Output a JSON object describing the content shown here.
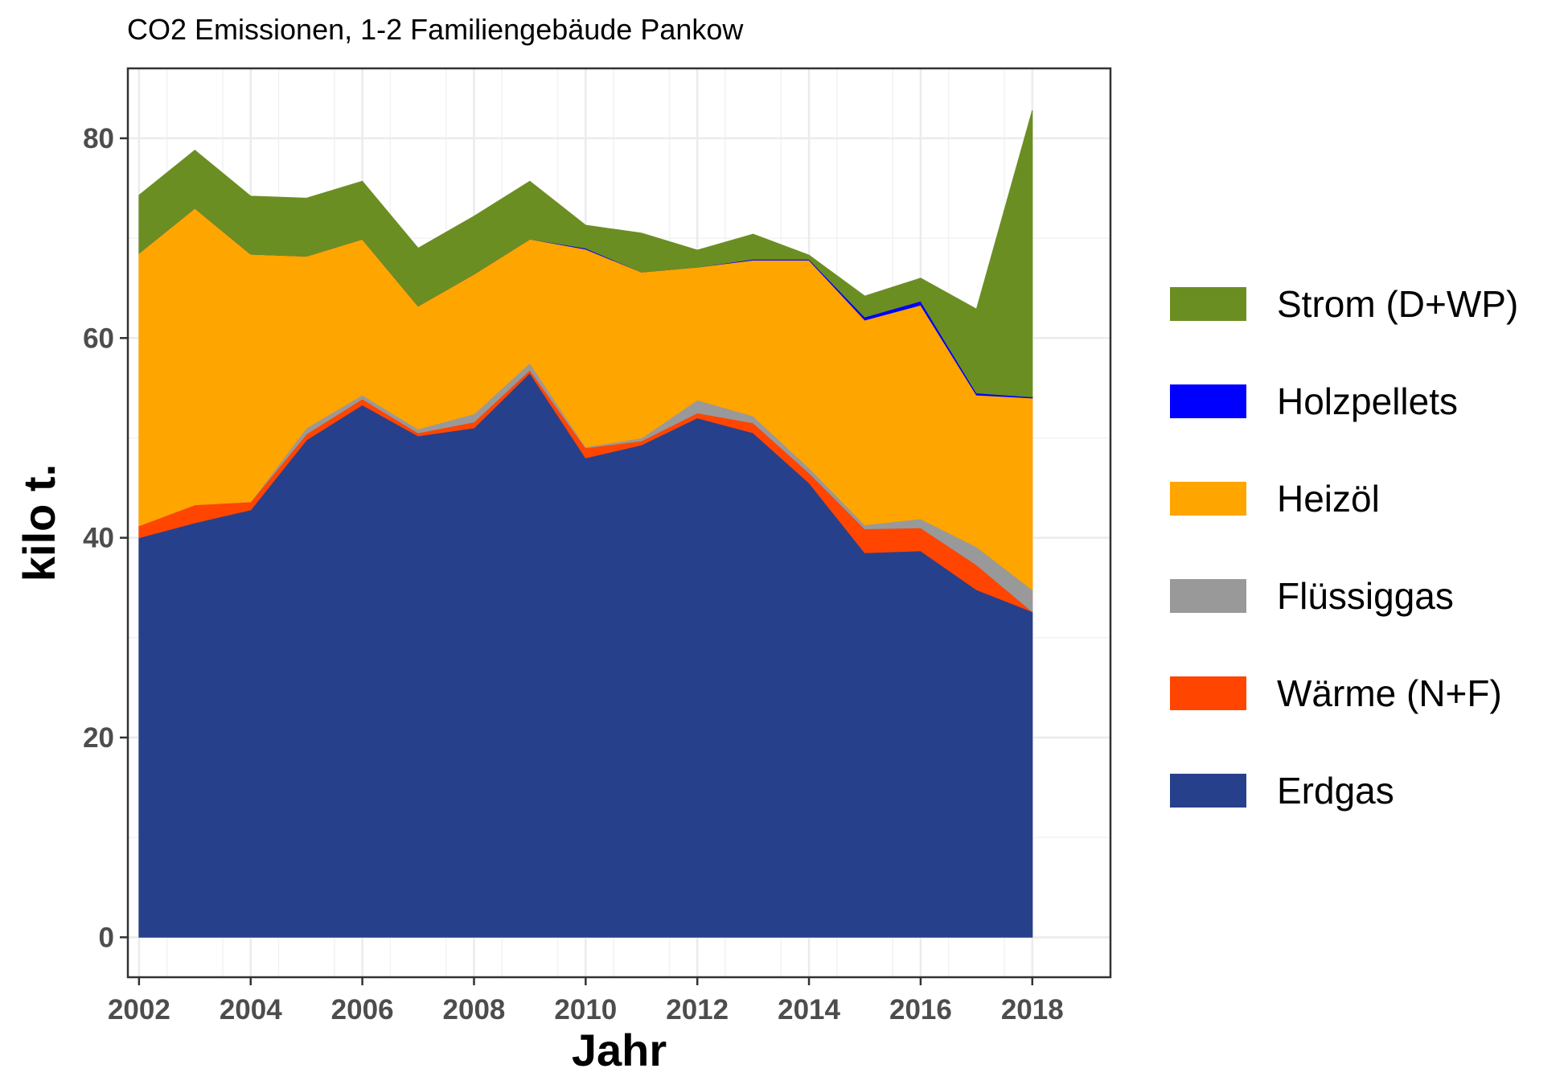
{
  "chart_data": {
    "type": "area",
    "stacked": true,
    "title": "CO2 Emissionen, 1-2 Familiengebäude Pankow",
    "xlabel": "Jahr",
    "ylabel": "kilo t.",
    "x": [
      2002,
      2003,
      2004,
      2005,
      2006,
      2007,
      2008,
      2009,
      2010,
      2011,
      2012,
      2013,
      2014,
      2015,
      2016,
      2017,
      2018
    ],
    "xlim": [
      2001.8,
      2019.4
    ],
    "ylim": [
      -4,
      87
    ],
    "x_ticks": [
      2002,
      2004,
      2006,
      2008,
      2010,
      2012,
      2014,
      2016,
      2018
    ],
    "y_ticks": [
      0,
      20,
      40,
      60,
      80
    ],
    "grid": true,
    "legend_position": "right",
    "series": [
      {
        "name": "Erdgas",
        "color": "#27408b",
        "values": [
          40.0,
          41.5,
          42.8,
          49.8,
          53.3,
          50.2,
          51.0,
          56.5,
          48.0,
          49.3,
          52.0,
          50.5,
          45.5,
          38.5,
          38.7,
          34.8,
          32.6
        ]
      },
      {
        "name": "Wärme (N+F)",
        "color": "#ff4500",
        "values": [
          1.2,
          1.8,
          0.8,
          0.6,
          0.6,
          0.3,
          0.6,
          0.3,
          1.0,
          0.4,
          0.5,
          1.0,
          1.0,
          2.4,
          2.3,
          2.5,
          0.0
        ]
      },
      {
        "name": "Flüssiggas",
        "color": "#999999",
        "values": [
          0.0,
          0.0,
          0.0,
          0.6,
          0.4,
          0.4,
          0.8,
          0.7,
          0.1,
          0.3,
          1.3,
          0.7,
          0.5,
          0.4,
          0.9,
          1.8,
          2.2
        ]
      },
      {
        "name": "Heizöl",
        "color": "#ffa500",
        "values": [
          27.3,
          29.7,
          24.8,
          17.2,
          15.6,
          12.3,
          14.0,
          12.4,
          19.8,
          16.6,
          13.3,
          15.6,
          20.8,
          20.5,
          21.4,
          15.2,
          19.2
        ]
      },
      {
        "name": "Holzpellets",
        "color": "#0000ff",
        "values": [
          0.0,
          0.0,
          0.0,
          0.0,
          0.0,
          0.0,
          0.0,
          0.0,
          0.1,
          0.0,
          0.0,
          0.1,
          0.1,
          0.3,
          0.4,
          0.2,
          0.1
        ]
      },
      {
        "name": "Strom (D+WP)",
        "color": "#6b8e23",
        "values": [
          5.8,
          5.8,
          5.8,
          5.8,
          5.8,
          5.8,
          5.8,
          5.8,
          2.3,
          3.9,
          1.7,
          2.5,
          0.4,
          2.1,
          2.3,
          8.4,
          28.7
        ]
      }
    ]
  }
}
